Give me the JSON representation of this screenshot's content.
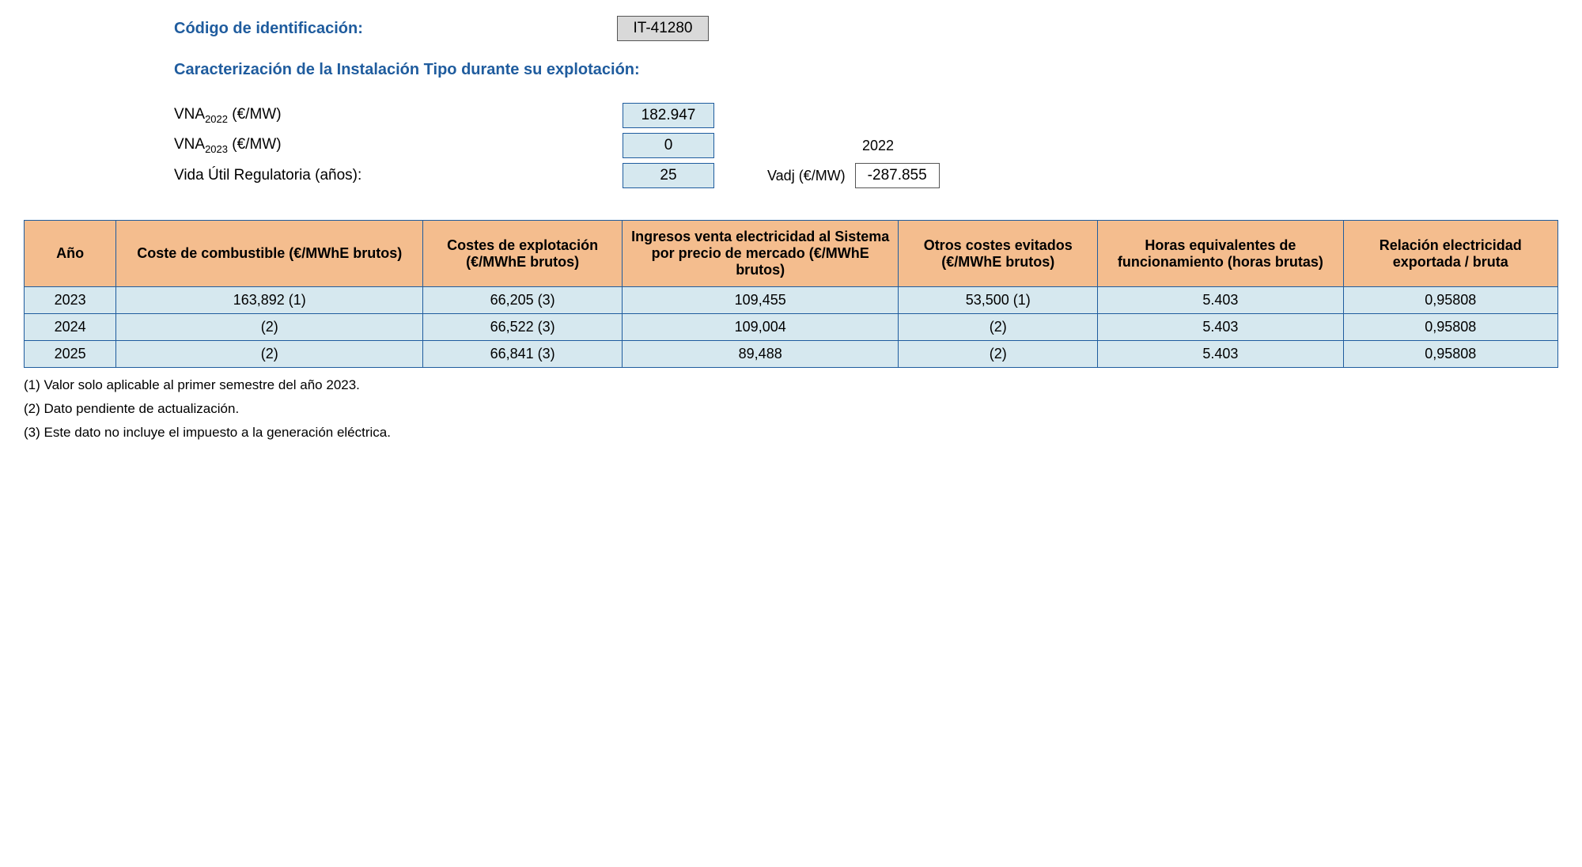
{
  "header": {
    "codigo_label": "Código de identificación:",
    "codigo_value": "IT-41280",
    "section_title": "Caracterización de la Instalación Tipo durante su explotación:",
    "vna2022_label_pre": "VNA",
    "vna2022_sub": "2022",
    "vna2022_label_post": " (€/MW)",
    "vna2022_value": "182.947",
    "vna2023_label_pre": "VNA",
    "vna2023_sub": "2023",
    "vna2023_label_post": " (€/MW)",
    "vna2023_value": "0",
    "year_extra": "2022",
    "vida_label": "Vida Útil Regulatoria (años):",
    "vida_value": "25",
    "vadj_label": "Vadj (€/MW)",
    "vadj_value": "-287.855"
  },
  "table": {
    "columns": [
      "Año",
      "Coste de combustible (€/MWhE brutos)",
      "Costes de explotación (€/MWhE brutos)",
      "Ingresos venta electricidad al Sistema por precio de mercado (€/MWhE brutos)",
      "Otros costes evitados (€/MWhE brutos)",
      "Horas equivalentes de funcionamiento (horas brutas)",
      "Relación electricidad exportada / bruta"
    ],
    "col_widths": [
      "6%",
      "20%",
      "13%",
      "18%",
      "13%",
      "16%",
      "14%"
    ],
    "rows": [
      [
        "2023",
        "163,892 (1)",
        "66,205 (3)",
        "109,455",
        "53,500 (1)",
        "5.403",
        "0,95808"
      ],
      [
        "2024",
        "(2)",
        "66,522 (3)",
        "109,004",
        "(2)",
        "5.403",
        "0,95808"
      ],
      [
        "2025",
        "(2)",
        "66,841 (3)",
        "89,488",
        "(2)",
        "5.403",
        "0,95808"
      ]
    ]
  },
  "footnotes": {
    "n1": "(1) Valor solo aplicable al primer semestre del año 2023.",
    "n2": "(2) Dato pendiente de actualización.",
    "n3": "(3) Este dato no incluye el impuesto a la generación eléctrica."
  },
  "colors": {
    "header_bg": "#f4bd8e",
    "cell_bg": "#d6e8ef",
    "border": "#1f5c9e",
    "label_blue": "#1f5c9e",
    "code_bg": "#d9d9d9"
  }
}
